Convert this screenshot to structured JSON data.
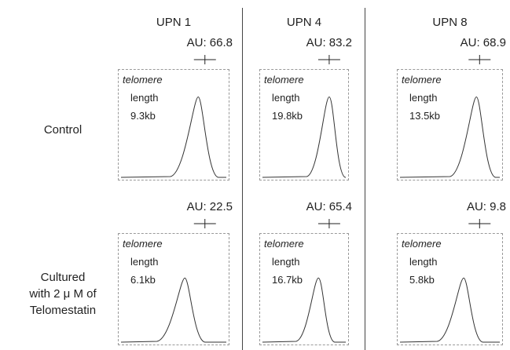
{
  "columns": [
    "UPN 1",
    "UPN 4",
    "UPN 8"
  ],
  "rows": [
    {
      "label": [
        "Control"
      ],
      "panels": [
        {
          "au": "AU: 66.8",
          "text": [
            "telomere",
            "length",
            "9.3kb"
          ]
        },
        {
          "au": "AU: 83.2",
          "text": [
            "telomere",
            "length",
            "19.8kb"
          ]
        },
        {
          "au": "AU: 68.9",
          "text": [
            "telomere",
            "length",
            "13.5kb"
          ]
        }
      ]
    },
    {
      "label": [
        "Cultured",
        "with 2 μ M of",
        "Telomestatin"
      ],
      "panels": [
        {
          "au": "AU: 22.5",
          "text": [
            "telomere",
            "length",
            "6.1kb"
          ]
        },
        {
          "au": "AU: 65.4",
          "text": [
            "telomere",
            "length",
            "16.7kb"
          ]
        },
        {
          "au": "AU: 9.8",
          "text": [
            "telomere",
            "length",
            "5.8kb"
          ]
        }
      ]
    }
  ]
}
